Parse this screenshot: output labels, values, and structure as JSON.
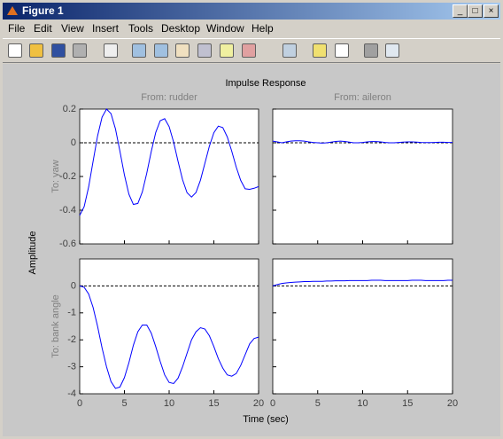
{
  "window": {
    "title": "Figure 1",
    "menu": [
      "File",
      "Edit",
      "View",
      "Insert",
      "Tools",
      "Desktop",
      "Window",
      "Help"
    ]
  },
  "figure": {
    "title": "Impulse Response",
    "col_labels": [
      "From: rudder",
      "From: aileron"
    ],
    "row_labels": [
      "To: yaw",
      "To: bank angle"
    ],
    "xlabel": "Time (sec)",
    "ylabel": "Amplitude"
  },
  "chart_data": [
    {
      "type": "line",
      "x": [
        0,
        0.5,
        1,
        1.5,
        2,
        2.5,
        3,
        3.5,
        4,
        4.5,
        5,
        5.5,
        6,
        6.5,
        7,
        7.5,
        8,
        8.5,
        9,
        9.5,
        10,
        10.5,
        11,
        11.5,
        12,
        12.5,
        13,
        13.5,
        14,
        14.5,
        15,
        15.5,
        16,
        16.5,
        17,
        17.5,
        18,
        18.5,
        19,
        19.5,
        20
      ],
      "series": [
        {
          "color": "#0000ff",
          "values": [
            -0.431,
            -0.379,
            -0.262,
            -0.109,
            0.041,
            0.152,
            0.2,
            0.173,
            0.082,
            -0.051,
            -0.191,
            -0.305,
            -0.366,
            -0.36,
            -0.292,
            -0.18,
            -0.052,
            0.061,
            0.131,
            0.143,
            0.096,
            0.004,
            -0.111,
            -0.219,
            -0.296,
            -0.322,
            -0.295,
            -0.222,
            -0.121,
            -0.02,
            0.06,
            0.099,
            0.09,
            0.035,
            -0.05,
            -0.144,
            -0.223,
            -0.273,
            -0.276,
            -0.27,
            -0.26
          ]
        }
      ],
      "xlim": [
        0,
        20
      ],
      "ylim": [
        -0.6,
        0.2
      ],
      "xticks": [
        0,
        5,
        10,
        15,
        20
      ],
      "yticks": [
        0.2,
        0,
        -0.2,
        -0.4,
        -0.6
      ]
    },
    {
      "type": "line",
      "x": [
        0,
        0.5,
        1,
        1.5,
        2,
        2.5,
        3,
        3.5,
        4,
        4.5,
        5,
        5.5,
        6,
        6.5,
        7,
        7.5,
        8,
        8.5,
        9,
        9.5,
        10,
        10.5,
        11,
        11.5,
        12,
        12.5,
        13,
        13.5,
        14,
        14.5,
        15,
        15.5,
        16,
        16.5,
        17,
        17.5,
        18,
        18.5,
        19,
        19.5,
        20
      ],
      "series": [
        {
          "color": "#0000ff",
          "values": [
            0.01,
            0.005,
            0,
            0.005,
            0.01,
            0.012,
            0.012,
            0.01,
            0.005,
            0.002,
            0,
            -0.002,
            0,
            0.004,
            0.008,
            0.01,
            0.008,
            0.004,
            0,
            0,
            0.002,
            0.005,
            0.007,
            0.007,
            0.005,
            0.002,
            0,
            0,
            0.002,
            0.004,
            0.005,
            0.005,
            0.004,
            0.002,
            0.001,
            0.001,
            0.002,
            0.003,
            0.003,
            0.002,
            0.002
          ]
        }
      ],
      "xlim": [
        0,
        20
      ],
      "ylim": [
        -0.6,
        0.2
      ],
      "xticks": [
        0,
        5,
        10,
        15,
        20
      ],
      "yticks": [
        0.2,
        0,
        -0.2,
        -0.4,
        -0.6
      ]
    },
    {
      "type": "line",
      "x": [
        0,
        0.5,
        1,
        1.5,
        2,
        2.5,
        3,
        3.5,
        4,
        4.5,
        5,
        5.5,
        6,
        6.5,
        7,
        7.5,
        8,
        8.5,
        9,
        9.5,
        10,
        10.5,
        11,
        11.5,
        12,
        12.5,
        13,
        13.5,
        14,
        14.5,
        15,
        15.5,
        16,
        16.5,
        17,
        17.5,
        18,
        18.5,
        19,
        19.5,
        20
      ],
      "series": [
        {
          "color": "#0000ff",
          "values": [
            0,
            -0.05,
            -0.3,
            -0.8,
            -1.5,
            -2.3,
            -3,
            -3.55,
            -3.8,
            -3.75,
            -3.4,
            -2.85,
            -2.2,
            -1.7,
            -1.45,
            -1.45,
            -1.75,
            -2.25,
            -2.8,
            -3.3,
            -3.58,
            -3.62,
            -3.42,
            -3,
            -2.5,
            -2,
            -1.7,
            -1.55,
            -1.6,
            -1.85,
            -2.25,
            -2.7,
            -3.05,
            -3.3,
            -3.35,
            -3.25,
            -2.95,
            -2.55,
            -2.15,
            -1.95,
            -1.9
          ]
        }
      ],
      "xlim": [
        0,
        20
      ],
      "ylim": [
        -4,
        1
      ],
      "xticks": [
        0,
        5,
        10,
        15,
        20
      ],
      "yticks": [
        0,
        -1,
        -2,
        -3,
        -4
      ]
    },
    {
      "type": "line",
      "x": [
        0,
        0.5,
        1,
        1.5,
        2,
        2.5,
        3,
        3.5,
        4,
        4.5,
        5,
        5.5,
        6,
        6.5,
        7,
        7.5,
        8,
        8.5,
        9,
        9.5,
        10,
        10.5,
        11,
        11.5,
        12,
        12.5,
        13,
        13.5,
        14,
        14.5,
        15,
        15.5,
        16,
        16.5,
        17,
        17.5,
        18,
        18.5,
        19,
        19.5,
        20
      ],
      "series": [
        {
          "color": "#0000ff",
          "values": [
            0,
            0.05,
            0.09,
            0.11,
            0.13,
            0.14,
            0.15,
            0.16,
            0.16,
            0.17,
            0.17,
            0.17,
            0.18,
            0.18,
            0.19,
            0.19,
            0.19,
            0.2,
            0.2,
            0.2,
            0.2,
            0.2,
            0.21,
            0.21,
            0.21,
            0.2,
            0.2,
            0.2,
            0.2,
            0.2,
            0.2,
            0.21,
            0.21,
            0.21,
            0.2,
            0.2,
            0.2,
            0.2,
            0.2,
            0.21,
            0.21
          ]
        }
      ],
      "xlim": [
        0,
        20
      ],
      "ylim": [
        -4,
        1
      ],
      "xticks": [
        0,
        5,
        10,
        15,
        20
      ],
      "yticks": [
        0,
        -1,
        -2,
        -3,
        -4
      ]
    }
  ]
}
